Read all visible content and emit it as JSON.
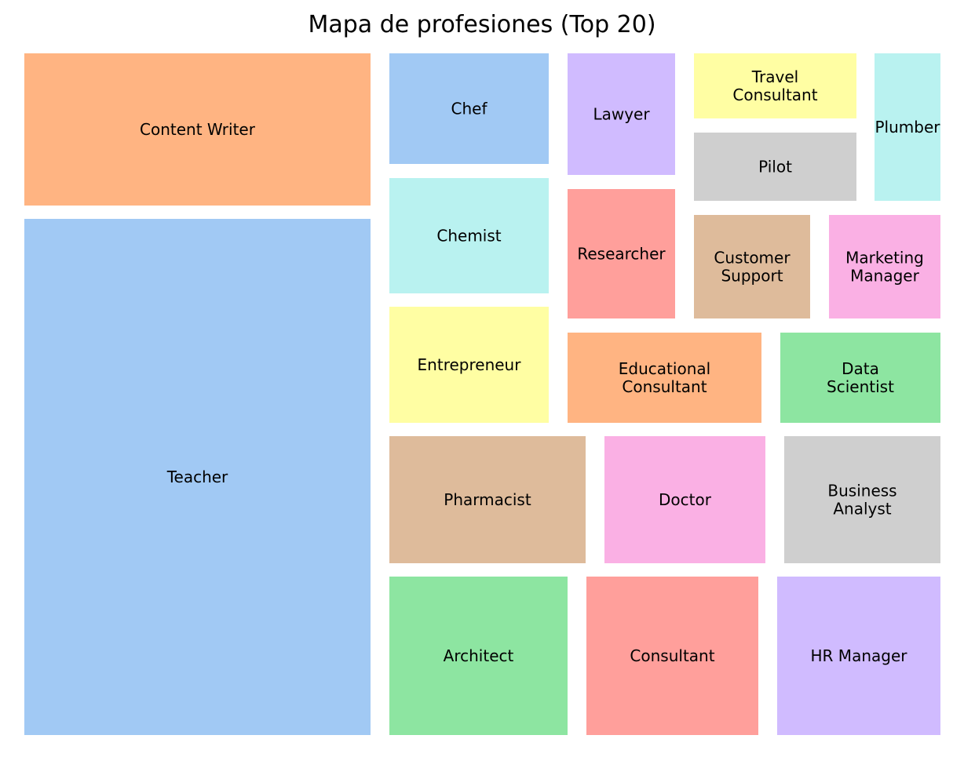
{
  "chart_data": {
    "type": "treemap",
    "title": "Mapa de profesiones (Top 20)",
    "palette": [
      "#a1c9f4",
      "#ffb482",
      "#8de5a1",
      "#ff9f9b",
      "#d0bbff",
      "#debb9b",
      "#fab0e4",
      "#cfcfcf",
      "#fffea3",
      "#b9f2f0"
    ],
    "tiles": [
      {
        "label": "Teacher",
        "color": "#a1c9f4"
      },
      {
        "label": "Content Writer",
        "color": "#ffb482"
      },
      {
        "label": "Architect",
        "color": "#8de5a1"
      },
      {
        "label": "Consultant",
        "color": "#ff9f9b"
      },
      {
        "label": "HR Manager",
        "color": "#d0bbff"
      },
      {
        "label": "Pharmacist",
        "color": "#debb9b"
      },
      {
        "label": "Doctor",
        "color": "#fab0e4"
      },
      {
        "label": "Business Analyst",
        "color": "#cfcfcf"
      },
      {
        "label": "Entrepreneur",
        "color": "#fffea3"
      },
      {
        "label": "Chemist",
        "color": "#b9f2f0"
      },
      {
        "label": "Chef",
        "color": "#a1c9f4"
      },
      {
        "label": "Educational Consultant",
        "color": "#ffb482"
      },
      {
        "label": "Data Scientist",
        "color": "#8de5a1"
      },
      {
        "label": "Researcher",
        "color": "#ff9f9b"
      },
      {
        "label": "Lawyer",
        "color": "#d0bbff"
      },
      {
        "label": "Customer Support",
        "color": "#debb9b"
      },
      {
        "label": "Marketing Manager",
        "color": "#fab0e4"
      },
      {
        "label": "Pilot",
        "color": "#cfcfcf"
      },
      {
        "label": "Travel Consultant",
        "color": "#fffea3"
      },
      {
        "label": "Plumber",
        "color": "#b9f2f0"
      }
    ]
  }
}
